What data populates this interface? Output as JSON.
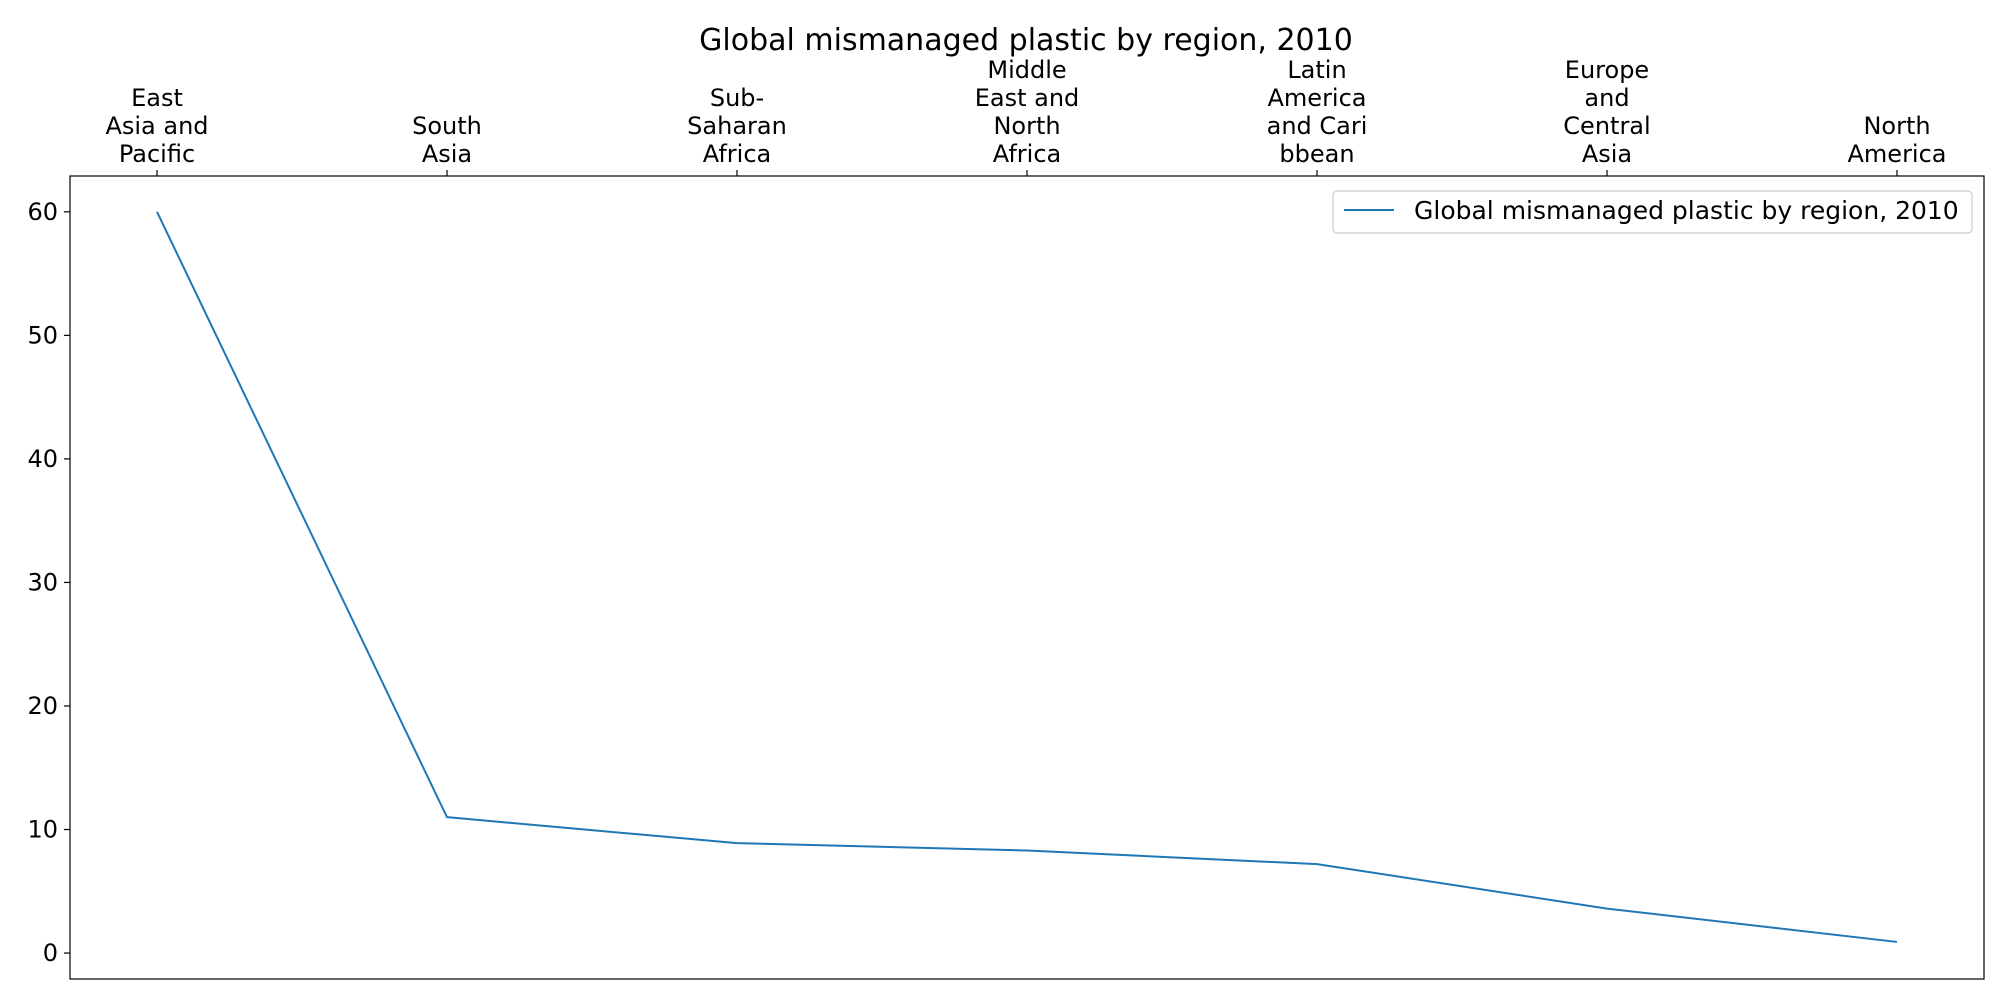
{
  "chart_data": {
    "type": "line",
    "title": "Global mismanaged plastic by region, 2010",
    "xlabel": "",
    "ylabel": "",
    "x_tick_position": "top",
    "categories": [
      "East Asia and Pacific",
      "South Asia",
      "Sub-Saharan Africa",
      "Middle East and North Africa",
      "Latin America and Caribbean",
      "Europe and Central Asia",
      "North America"
    ],
    "category_labels_lines": [
      [
        "East",
        "Asia and",
        "Pacific"
      ],
      [
        "South",
        "Asia"
      ],
      [
        "Sub-",
        "Saharan",
        "Africa"
      ],
      [
        "Middle",
        "East and",
        "North",
        "Africa"
      ],
      [
        "Latin",
        "America",
        "and Cari",
        "bbean"
      ],
      [
        "Europe",
        "and",
        "Central",
        "Asia"
      ],
      [
        "North",
        "America"
      ]
    ],
    "series": [
      {
        "name": "Global mismanaged plastic by region, 2010",
        "color": "#1f77b4",
        "values": [
          60.0,
          11.0,
          8.9,
          8.3,
          7.2,
          3.6,
          0.9
        ]
      }
    ],
    "ylim": [
      -2.1,
      62.9
    ],
    "yticks": [
      0,
      10,
      20,
      30,
      40,
      50,
      60
    ],
    "grid": false,
    "legend_position": "top-right"
  }
}
